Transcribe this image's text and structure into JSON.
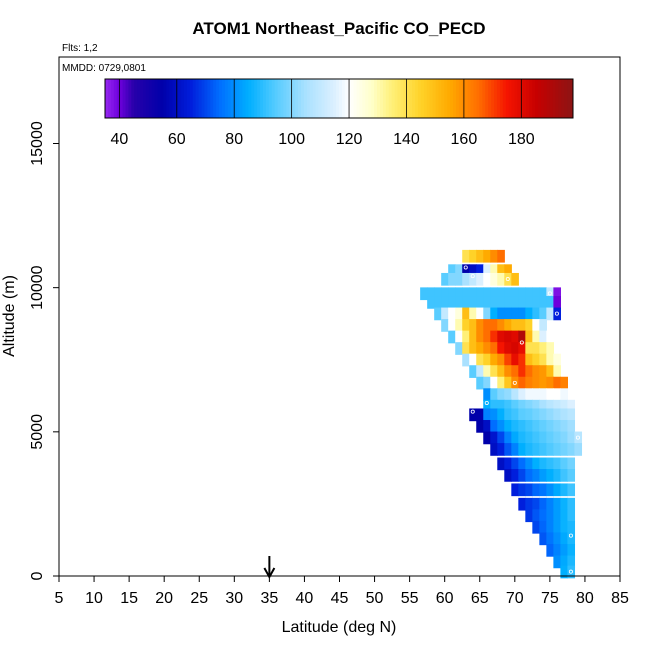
{
  "chart_data": {
    "type": "heatmap",
    "title": "ATOM1 Northeast_Pacific CO_PECD",
    "flights_label": "Flts: 1,2",
    "date_label": "MMDD: 0729,0801",
    "xlabel": "Latitude (deg N)",
    "ylabel": "Altitude (m)",
    "xlim": [
      5,
      85
    ],
    "ylim": [
      0,
      18000
    ],
    "x_ticks": [
      "5",
      "10",
      "15",
      "20",
      "25",
      "30",
      "35",
      "40",
      "45",
      "50",
      "55",
      "60",
      "65",
      "70",
      "75",
      "80",
      "85"
    ],
    "y_ticks": [
      "0",
      "5000",
      "10000",
      "15000"
    ],
    "y_tick_values": [
      0,
      5000,
      10000,
      15000
    ],
    "colorbar": {
      "range": [
        35,
        198
      ],
      "ticks": [
        "40",
        "60",
        "80",
        "100",
        "120",
        "140",
        "160",
        "180"
      ],
      "tick_values": [
        40,
        60,
        80,
        100,
        120,
        140,
        160,
        180
      ]
    },
    "arrow_latitude": 35,
    "cells": [
      [
        63,
        11100,
        140
      ],
      [
        64,
        11100,
        145
      ],
      [
        65,
        11100,
        150
      ],
      [
        66,
        11100,
        155
      ],
      [
        67,
        11100,
        160
      ],
      [
        68,
        11100,
        165
      ],
      [
        61,
        10600,
        95
      ],
      [
        62,
        10600,
        100
      ],
      [
        63,
        10600,
        55
      ],
      [
        64,
        10600,
        60
      ],
      [
        65,
        10600,
        65
      ],
      [
        66,
        10600,
        115
      ],
      [
        67,
        10600,
        130
      ],
      [
        68,
        10600,
        150
      ],
      [
        69,
        10600,
        155
      ],
      [
        60,
        10300,
        95
      ],
      [
        61,
        10300,
        100
      ],
      [
        62,
        10300,
        100
      ],
      [
        63,
        10300,
        105
      ],
      [
        64,
        10300,
        110
      ],
      [
        65,
        10300,
        115
      ],
      [
        66,
        10300,
        120
      ],
      [
        67,
        10300,
        125
      ],
      [
        68,
        10300,
        130
      ],
      [
        69,
        10300,
        140
      ],
      [
        70,
        10300,
        150
      ],
      [
        57,
        9800,
        92
      ],
      [
        58,
        9800,
        92
      ],
      [
        59,
        9800,
        92
      ],
      [
        60,
        9800,
        92
      ],
      [
        61,
        9800,
        92
      ],
      [
        62,
        9800,
        92
      ],
      [
        63,
        9800,
        92
      ],
      [
        64,
        9800,
        92
      ],
      [
        65,
        9800,
        92
      ],
      [
        66,
        9800,
        92
      ],
      [
        67,
        9800,
        92
      ],
      [
        68,
        9800,
        92
      ],
      [
        69,
        9800,
        92
      ],
      [
        70,
        9800,
        92
      ],
      [
        71,
        9800,
        92
      ],
      [
        72,
        9800,
        92
      ],
      [
        73,
        9800,
        92
      ],
      [
        74,
        9800,
        92
      ],
      [
        75,
        9800,
        110
      ],
      [
        76,
        9800,
        38
      ],
      [
        58,
        9500,
        92
      ],
      [
        59,
        9500,
        92
      ],
      [
        60,
        9500,
        92
      ],
      [
        61,
        9500,
        92
      ],
      [
        62,
        9500,
        92
      ],
      [
        63,
        9500,
        92
      ],
      [
        64,
        9500,
        92
      ],
      [
        65,
        9500,
        92
      ],
      [
        66,
        9500,
        92
      ],
      [
        67,
        9500,
        92
      ],
      [
        68,
        9500,
        92
      ],
      [
        69,
        9500,
        92
      ],
      [
        70,
        9500,
        92
      ],
      [
        71,
        9500,
        92
      ],
      [
        72,
        9500,
        92
      ],
      [
        73,
        9500,
        92
      ],
      [
        74,
        9500,
        92
      ],
      [
        75,
        9500,
        92
      ],
      [
        76,
        9500,
        40
      ],
      [
        59,
        9100,
        95
      ],
      [
        60,
        9100,
        110
      ],
      [
        61,
        9100,
        120
      ],
      [
        62,
        9100,
        125
      ],
      [
        63,
        9100,
        150
      ],
      [
        64,
        9100,
        130
      ],
      [
        65,
        9100,
        120
      ],
      [
        66,
        9100,
        100
      ],
      [
        67,
        9100,
        85
      ],
      [
        68,
        9100,
        80
      ],
      [
        69,
        9100,
        80
      ],
      [
        70,
        9100,
        80
      ],
      [
        71,
        9100,
        80
      ],
      [
        72,
        9100,
        85
      ],
      [
        73,
        9100,
        90
      ],
      [
        74,
        9100,
        95
      ],
      [
        75,
        9100,
        110
      ],
      [
        76,
        9100,
        65
      ],
      [
        60,
        8700,
        100
      ],
      [
        61,
        8700,
        120
      ],
      [
        62,
        8700,
        130
      ],
      [
        63,
        8700,
        145
      ],
      [
        64,
        8700,
        150
      ],
      [
        65,
        8700,
        160
      ],
      [
        66,
        8700,
        165
      ],
      [
        67,
        8700,
        165
      ],
      [
        68,
        8700,
        160
      ],
      [
        69,
        8700,
        155
      ],
      [
        70,
        8700,
        150
      ],
      [
        71,
        8700,
        150
      ],
      [
        72,
        8700,
        145
      ],
      [
        73,
        8700,
        120
      ],
      [
        74,
        8700,
        110
      ],
      [
        61,
        8300,
        95
      ],
      [
        62,
        8300,
        120
      ],
      [
        63,
        8300,
        135
      ],
      [
        64,
        8300,
        150
      ],
      [
        65,
        8300,
        160
      ],
      [
        66,
        8300,
        165
      ],
      [
        67,
        8300,
        172
      ],
      [
        68,
        8300,
        180
      ],
      [
        69,
        8300,
        182
      ],
      [
        70,
        8300,
        180
      ],
      [
        71,
        8300,
        190
      ],
      [
        72,
        8300,
        150
      ],
      [
        73,
        8300,
        130
      ],
      [
        74,
        8300,
        115
      ],
      [
        75,
        8300,
        120
      ],
      [
        62,
        7900,
        100
      ],
      [
        63,
        7900,
        140
      ],
      [
        64,
        7900,
        150
      ],
      [
        65,
        7900,
        155
      ],
      [
        66,
        7900,
        160
      ],
      [
        67,
        7900,
        165
      ],
      [
        68,
        7900,
        175
      ],
      [
        69,
        7900,
        180
      ],
      [
        70,
        7900,
        182
      ],
      [
        71,
        7900,
        178
      ],
      [
        72,
        7900,
        140
      ],
      [
        73,
        7900,
        140
      ],
      [
        74,
        7900,
        135
      ],
      [
        75,
        7900,
        130
      ],
      [
        63,
        7500,
        105
      ],
      [
        64,
        7500,
        120
      ],
      [
        65,
        7500,
        140
      ],
      [
        66,
        7500,
        145
      ],
      [
        67,
        7500,
        155
      ],
      [
        68,
        7500,
        160
      ],
      [
        69,
        7500,
        170
      ],
      [
        70,
        7500,
        178
      ],
      [
        71,
        7500,
        172
      ],
      [
        72,
        7500,
        150
      ],
      [
        73,
        7500,
        145
      ],
      [
        74,
        7500,
        140
      ],
      [
        75,
        7500,
        130
      ],
      [
        76,
        7500,
        125
      ],
      [
        64,
        7100,
        95
      ],
      [
        65,
        7100,
        110
      ],
      [
        66,
        7100,
        130
      ],
      [
        67,
        7100,
        140
      ],
      [
        68,
        7100,
        150
      ],
      [
        69,
        7100,
        160
      ],
      [
        70,
        7100,
        165
      ],
      [
        71,
        7100,
        172
      ],
      [
        72,
        7100,
        165
      ],
      [
        73,
        7100,
        160
      ],
      [
        74,
        7100,
        158
      ],
      [
        75,
        7100,
        150
      ],
      [
        76,
        7100,
        130
      ],
      [
        65,
        6700,
        95
      ],
      [
        66,
        6700,
        100
      ],
      [
        67,
        6700,
        120
      ],
      [
        68,
        6700,
        135
      ],
      [
        69,
        6700,
        148
      ],
      [
        70,
        6700,
        160
      ],
      [
        71,
        6700,
        166
      ],
      [
        72,
        6700,
        162
      ],
      [
        73,
        6700,
        160
      ],
      [
        74,
        6700,
        158
      ],
      [
        75,
        6700,
        160
      ],
      [
        76,
        6700,
        165
      ],
      [
        77,
        6700,
        162
      ],
      [
        66,
        6300,
        80
      ],
      [
        67,
        6300,
        95
      ],
      [
        68,
        6300,
        100
      ],
      [
        69,
        6300,
        102
      ],
      [
        70,
        6300,
        108
      ],
      [
        71,
        6300,
        115
      ],
      [
        72,
        6300,
        118
      ],
      [
        73,
        6300,
        118
      ],
      [
        74,
        6300,
        118
      ],
      [
        75,
        6300,
        120
      ],
      [
        76,
        6300,
        120
      ],
      [
        77,
        6300,
        118
      ],
      [
        66,
        5900,
        85
      ],
      [
        67,
        5900,
        90
      ],
      [
        68,
        5900,
        90
      ],
      [
        69,
        5900,
        92
      ],
      [
        70,
        5900,
        95
      ],
      [
        71,
        5900,
        98
      ],
      [
        72,
        5900,
        100
      ],
      [
        73,
        5900,
        102
      ],
      [
        74,
        5900,
        105
      ],
      [
        75,
        5900,
        108
      ],
      [
        76,
        5900,
        110
      ],
      [
        77,
        5900,
        112
      ],
      [
        78,
        5900,
        115
      ],
      [
        64,
        5600,
        55
      ],
      [
        65,
        5600,
        55
      ],
      [
        66,
        5600,
        78
      ],
      [
        67,
        5600,
        80
      ],
      [
        68,
        5600,
        85
      ],
      [
        69,
        5600,
        90
      ],
      [
        70,
        5600,
        92
      ],
      [
        71,
        5600,
        95
      ],
      [
        72,
        5600,
        96
      ],
      [
        73,
        5600,
        98
      ],
      [
        74,
        5600,
        100
      ],
      [
        75,
        5600,
        102
      ],
      [
        76,
        5600,
        104
      ],
      [
        77,
        5600,
        106
      ],
      [
        78,
        5600,
        108
      ],
      [
        65,
        5200,
        55
      ],
      [
        66,
        5200,
        60
      ],
      [
        67,
        5200,
        75
      ],
      [
        68,
        5200,
        80
      ],
      [
        69,
        5200,
        85
      ],
      [
        70,
        5200,
        88
      ],
      [
        71,
        5200,
        90
      ],
      [
        72,
        5200,
        92
      ],
      [
        73,
        5200,
        94
      ],
      [
        74,
        5200,
        96
      ],
      [
        75,
        5200,
        98
      ],
      [
        76,
        5200,
        100
      ],
      [
        77,
        5200,
        102
      ],
      [
        78,
        5200,
        104
      ],
      [
        66,
        4800,
        55
      ],
      [
        67,
        4800,
        62
      ],
      [
        68,
        4800,
        70
      ],
      [
        69,
        4800,
        78
      ],
      [
        70,
        4800,
        84
      ],
      [
        71,
        4800,
        88
      ],
      [
        72,
        4800,
        90
      ],
      [
        73,
        4800,
        92
      ],
      [
        74,
        4800,
        94
      ],
      [
        75,
        4800,
        96
      ],
      [
        76,
        4800,
        98
      ],
      [
        77,
        4800,
        100
      ],
      [
        78,
        4800,
        103
      ],
      [
        79,
        4800,
        108
      ],
      [
        67,
        4400,
        60
      ],
      [
        68,
        4400,
        65
      ],
      [
        69,
        4400,
        72
      ],
      [
        70,
        4400,
        78
      ],
      [
        71,
        4400,
        85
      ],
      [
        72,
        4400,
        88
      ],
      [
        73,
        4400,
        90
      ],
      [
        74,
        4400,
        92
      ],
      [
        75,
        4400,
        94
      ],
      [
        76,
        4400,
        96
      ],
      [
        77,
        4400,
        98
      ],
      [
        78,
        4400,
        100
      ],
      [
        79,
        4400,
        103
      ],
      [
        68,
        3900,
        60
      ],
      [
        69,
        3900,
        65
      ],
      [
        70,
        3900,
        70
      ],
      [
        71,
        3900,
        75
      ],
      [
        72,
        3900,
        80
      ],
      [
        73,
        3900,
        85
      ],
      [
        74,
        3900,
        88
      ],
      [
        75,
        3900,
        90
      ],
      [
        76,
        3900,
        92
      ],
      [
        77,
        3900,
        95
      ],
      [
        78,
        3900,
        98
      ],
      [
        69,
        3500,
        60
      ],
      [
        70,
        3500,
        65
      ],
      [
        71,
        3500,
        70
      ],
      [
        72,
        3500,
        75
      ],
      [
        73,
        3500,
        78
      ],
      [
        74,
        3500,
        82
      ],
      [
        75,
        3500,
        85
      ],
      [
        76,
        3500,
        88
      ],
      [
        77,
        3500,
        92
      ],
      [
        78,
        3500,
        95
      ],
      [
        70,
        3000,
        65
      ],
      [
        71,
        3000,
        68
      ],
      [
        72,
        3000,
        70
      ],
      [
        73,
        3000,
        74
      ],
      [
        74,
        3000,
        76
      ],
      [
        75,
        3000,
        80
      ],
      [
        76,
        3000,
        84
      ],
      [
        77,
        3000,
        88
      ],
      [
        78,
        3000,
        92
      ],
      [
        71,
        2500,
        65
      ],
      [
        72,
        2500,
        68
      ],
      [
        73,
        2500,
        70
      ],
      [
        74,
        2500,
        74
      ],
      [
        75,
        2500,
        78
      ],
      [
        76,
        2500,
        82
      ],
      [
        77,
        2500,
        86
      ],
      [
        78,
        2500,
        90
      ],
      [
        72,
        2100,
        68
      ],
      [
        73,
        2100,
        72
      ],
      [
        74,
        2100,
        75
      ],
      [
        75,
        2100,
        78
      ],
      [
        76,
        2100,
        82
      ],
      [
        77,
        2100,
        86
      ],
      [
        78,
        2100,
        90
      ],
      [
        73,
        1700,
        70
      ],
      [
        74,
        1700,
        74
      ],
      [
        75,
        1700,
        78
      ],
      [
        76,
        1700,
        82
      ],
      [
        77,
        1700,
        86
      ],
      [
        78,
        1700,
        88
      ],
      [
        74,
        1300,
        72
      ],
      [
        75,
        1300,
        76
      ],
      [
        76,
        1300,
        80
      ],
      [
        77,
        1300,
        84
      ],
      [
        78,
        1300,
        88
      ],
      [
        75,
        900,
        74
      ],
      [
        76,
        900,
        78
      ],
      [
        77,
        900,
        82
      ],
      [
        78,
        900,
        86
      ],
      [
        76,
        500,
        80
      ],
      [
        77,
        500,
        84
      ],
      [
        78,
        500,
        88
      ],
      [
        77,
        150,
        85
      ],
      [
        78,
        150,
        90
      ]
    ],
    "markers": [
      [
        63,
        10700
      ],
      [
        64,
        10400
      ],
      [
        66,
        10400
      ],
      [
        69,
        10300
      ],
      [
        75,
        9800
      ],
      [
        76,
        9100
      ],
      [
        71,
        8100
      ],
      [
        70,
        6700
      ],
      [
        66,
        6000
      ],
      [
        64,
        5700
      ],
      [
        79,
        4800
      ],
      [
        78,
        1400
      ],
      [
        78,
        150
      ]
    ]
  }
}
